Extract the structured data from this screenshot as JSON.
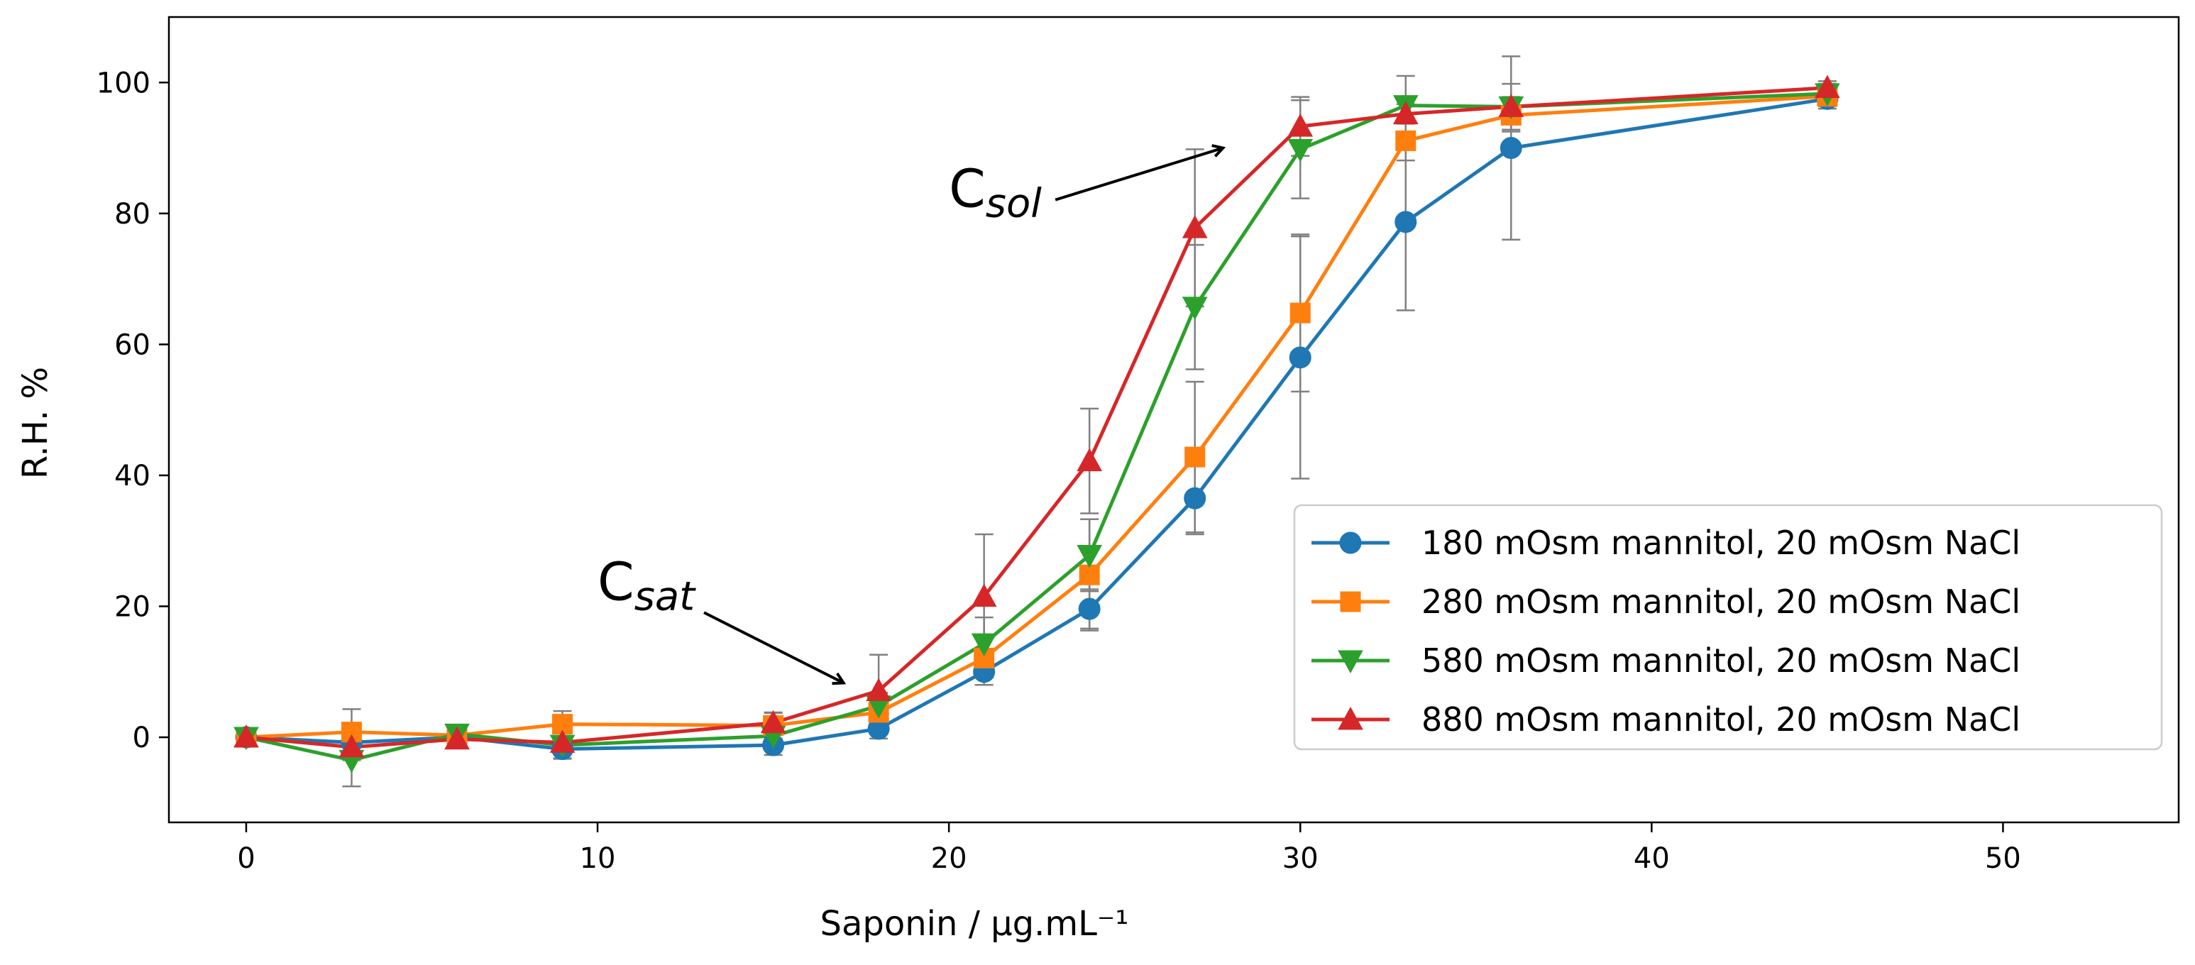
{
  "chart_data": {
    "type": "line",
    "xlabel": "Saponin / μg.mL⁻¹",
    "ylabel": "R.H. %",
    "xlim": [
      -2.2,
      55
    ],
    "ylim": [
      -13,
      110
    ],
    "xticks": [
      0,
      10,
      20,
      30,
      40,
      50
    ],
    "yticks": [
      0,
      20,
      40,
      60,
      80,
      100
    ],
    "grid": false,
    "legend_position": "lower-right",
    "x": [
      0,
      3,
      6,
      9,
      15,
      18,
      21,
      24,
      27,
      30,
      33,
      36,
      45
    ],
    "series": [
      {
        "name": "180 mOsm mannitol, 20 mOsm NaCl",
        "color": "#1f77b4",
        "marker": "circle",
        "values": [
          0,
          -0.8,
          0,
          -1.8,
          -1.2,
          1.3,
          10,
          19.6,
          36.5,
          58,
          78.7,
          90,
          97.5
        ],
        "errors": [
          0,
          1.5,
          0.5,
          1.5,
          1.5,
          1.5,
          2.0,
          3.0,
          5.5,
          18.5,
          13.5,
          14.0,
          1.5
        ]
      },
      {
        "name": "280 mOsm mannitol, 20 mOsm NaCl",
        "color": "#ff7f0e",
        "marker": "square",
        "values": [
          0,
          0.8,
          0.3,
          2,
          1.8,
          3.8,
          12.1,
          24.8,
          42.8,
          64.8,
          91.1,
          95,
          97.9
        ],
        "errors": [
          0,
          3.5,
          0.5,
          2.0,
          2.0,
          2.0,
          3.0,
          8.5,
          11.5,
          12.0,
          3.0,
          2.5,
          1.5
        ]
      },
      {
        "name": "580 mOsm mannitol, 20 mOsm NaCl",
        "color": "#2ca02c",
        "marker": "triangle-down",
        "values": [
          0,
          -3.5,
          0.5,
          -1.2,
          0.2,
          4.8,
          14.3,
          27.8,
          65.7,
          89.8,
          96.5,
          96.3,
          98.3
        ],
        "errors": [
          0,
          4.0,
          0.5,
          2.0,
          2.0,
          2.0,
          4.0,
          5.5,
          9.5,
          7.5,
          4.5,
          3.5,
          1.5
        ]
      },
      {
        "name": "880 mOsm mannitol, 20 mOsm NaCl",
        "color": "#d62728",
        "marker": "triangle-up",
        "values": [
          0,
          -1.5,
          -0.3,
          -0.8,
          2.2,
          7.1,
          21.5,
          42.2,
          77.8,
          93.3,
          95.2,
          96.3,
          99.2
        ],
        "errors": [
          0,
          2.0,
          0.5,
          1.5,
          1.5,
          5.5,
          9.5,
          8.0,
          12.0,
          4.5,
          1.5,
          1.5,
          1.0
        ]
      }
    ],
    "annotations": [
      {
        "label": "C",
        "subscript": "sat",
        "text_x": 10,
        "text_y": 21,
        "arrow_x": 17,
        "arrow_y": 8.3
      },
      {
        "label": "C",
        "subscript": "sol",
        "text_x": 20,
        "text_y": 81,
        "arrow_x": 27.8,
        "arrow_y": 90
      }
    ],
    "errorbar_color": "#808080"
  }
}
